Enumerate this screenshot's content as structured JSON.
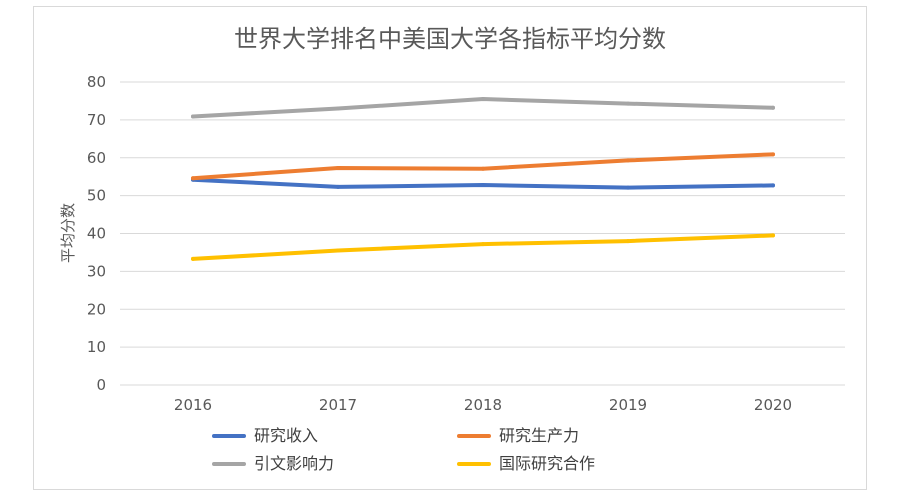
{
  "chart_data": {
    "type": "line",
    "title": "世界大学排名中美国大学各指标平均分数",
    "xlabel": "",
    "ylabel": "平均分数",
    "x": [
      "2016",
      "2017",
      "2018",
      "2019",
      "2020"
    ],
    "ylim": [
      0,
      80
    ],
    "yticks": [
      "0",
      "10",
      "20",
      "30",
      "40",
      "50",
      "60",
      "70",
      "80"
    ],
    "grid": true,
    "legend_position": "bottom",
    "series": [
      {
        "name": "研究收入",
        "color": "#4472c4",
        "values": [
          54.2,
          52.3,
          52.8,
          52.1,
          52.7
        ]
      },
      {
        "name": "研究生产力",
        "color": "#ed7d31",
        "values": [
          54.6,
          57.3,
          57.1,
          59.3,
          60.9
        ]
      },
      {
        "name": "引文影响力",
        "color": "#a5a5a5",
        "values": [
          70.9,
          73.0,
          75.5,
          74.3,
          73.2
        ]
      },
      {
        "name": "国际研究合作",
        "color": "#ffc000",
        "values": [
          33.3,
          35.5,
          37.2,
          38.0,
          39.5
        ]
      }
    ]
  }
}
